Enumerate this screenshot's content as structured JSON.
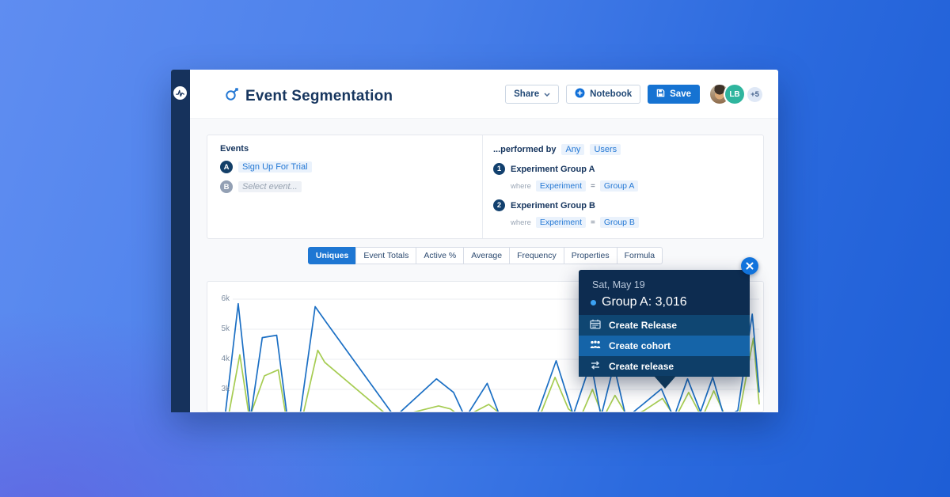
{
  "header": {
    "title": "Event Segmentation",
    "share_label": "Share",
    "notebook_label": "Notebook",
    "save_label": "Save",
    "avatar_initials": "LB",
    "avatar_overflow": "+5"
  },
  "events_panel": {
    "heading": "Events",
    "row_a": {
      "badge": "A",
      "label": "Sign Up For Trial"
    },
    "row_b": {
      "badge": "B",
      "label": "Select event..."
    }
  },
  "performed_by": {
    "heading": "...performed by",
    "scope_any": "Any",
    "scope_users": "Users",
    "groups": [
      {
        "num": "1",
        "name": "Experiment Group A",
        "where_label": "where",
        "property": "Experiment",
        "operator": "=",
        "value": "Group A"
      },
      {
        "num": "2",
        "name": "Experiment Group B",
        "where_label": "where",
        "property": "Experiment",
        "operator": "=",
        "value": "Group B"
      }
    ]
  },
  "tabs": [
    {
      "label": "Uniques",
      "active": true
    },
    {
      "label": "Event Totals",
      "active": false
    },
    {
      "label": "Active %",
      "active": false
    },
    {
      "label": "Average",
      "active": false
    },
    {
      "label": "Frequency",
      "active": false
    },
    {
      "label": "Properties",
      "active": false
    },
    {
      "label": "Formula",
      "active": false
    }
  ],
  "tooltip": {
    "date": "Sat, May 19",
    "series_value": "Group A: 3,016",
    "menu": [
      {
        "icon": "calendar-icon",
        "label": "Create Release",
        "highlighted": false
      },
      {
        "icon": "cohort-icon",
        "label": "Create cohort",
        "highlighted": true
      },
      {
        "icon": "swap-icon",
        "label": "Create release",
        "highlighted": false
      }
    ]
  },
  "chart_data": {
    "type": "line",
    "grid": true,
    "ylim": [
      2150,
      6400
    ],
    "yticks": [
      {
        "label": "6k",
        "value": 6000
      },
      {
        "label": "5k",
        "value": 5000
      },
      {
        "label": "4k",
        "value": 4000
      },
      {
        "label": "3k",
        "value": 3000
      }
    ],
    "highlight": {
      "date": "Sat, May 19",
      "series": "Group A",
      "value": 3016
    },
    "series": [
      {
        "name": "Group A",
        "color": "#1b6fc4",
        "points": [
          [
            0.0,
            2050
          ],
          [
            2.5,
            5850
          ],
          [
            4.8,
            2050
          ],
          [
            7.0,
            4720
          ],
          [
            9.7,
            4800
          ],
          [
            11.7,
            2050
          ],
          [
            14.0,
            2050
          ],
          [
            16.9,
            5750
          ],
          [
            19.1,
            5200
          ],
          [
            31.8,
            2080
          ],
          [
            39.6,
            3350
          ],
          [
            42.8,
            2900
          ],
          [
            45.0,
            2050
          ],
          [
            49.1,
            3200
          ],
          [
            51.6,
            2050
          ],
          [
            58.2,
            2050
          ],
          [
            62.0,
            3950
          ],
          [
            65.2,
            2150
          ],
          [
            68.5,
            3900
          ],
          [
            70.4,
            2100
          ],
          [
            72.8,
            3800
          ],
          [
            75.1,
            2050
          ],
          [
            78.2,
            2500
          ],
          [
            81.7,
            3016
          ],
          [
            84.0,
            2050
          ],
          [
            86.6,
            3350
          ],
          [
            89.0,
            2250
          ],
          [
            91.3,
            3400
          ],
          [
            93.5,
            2050
          ],
          [
            96.0,
            2300
          ],
          [
            98.7,
            5500
          ],
          [
            100.0,
            2900
          ]
        ]
      },
      {
        "name": "Group B",
        "color": "#a6cc52",
        "points": [
          [
            0.6,
            2050
          ],
          [
            2.8,
            4150
          ],
          [
            4.6,
            2050
          ],
          [
            7.4,
            3450
          ],
          [
            10.0,
            3650
          ],
          [
            11.5,
            2050
          ],
          [
            14.5,
            2050
          ],
          [
            17.4,
            4300
          ],
          [
            18.7,
            3900
          ],
          [
            31.0,
            2050
          ],
          [
            40.0,
            2450
          ],
          [
            42.2,
            2350
          ],
          [
            44.5,
            2050
          ],
          [
            49.4,
            2500
          ],
          [
            52.5,
            2050
          ],
          [
            58.8,
            2050
          ],
          [
            61.8,
            3400
          ],
          [
            64.3,
            2350
          ],
          [
            66.5,
            2050
          ],
          [
            68.8,
            3000
          ],
          [
            70.8,
            2050
          ],
          [
            73.0,
            2800
          ],
          [
            75.5,
            2050
          ],
          [
            78.5,
            2300
          ],
          [
            81.9,
            2700
          ],
          [
            84.3,
            2050
          ],
          [
            86.8,
            2900
          ],
          [
            89.3,
            2050
          ],
          [
            91.5,
            2950
          ],
          [
            93.8,
            2050
          ],
          [
            96.3,
            2200
          ],
          [
            98.9,
            4700
          ],
          [
            100.0,
            2500
          ]
        ]
      }
    ]
  },
  "colors": {
    "brand_navy": "#16325c",
    "accent_blue": "#1673d2",
    "link_blue": "#2478d4",
    "line_group_a": "#1b6fc4",
    "line_group_b": "#a6cc52",
    "tooltip_bg": "#0d2c50",
    "avatar_teal": "#2fb59e"
  }
}
